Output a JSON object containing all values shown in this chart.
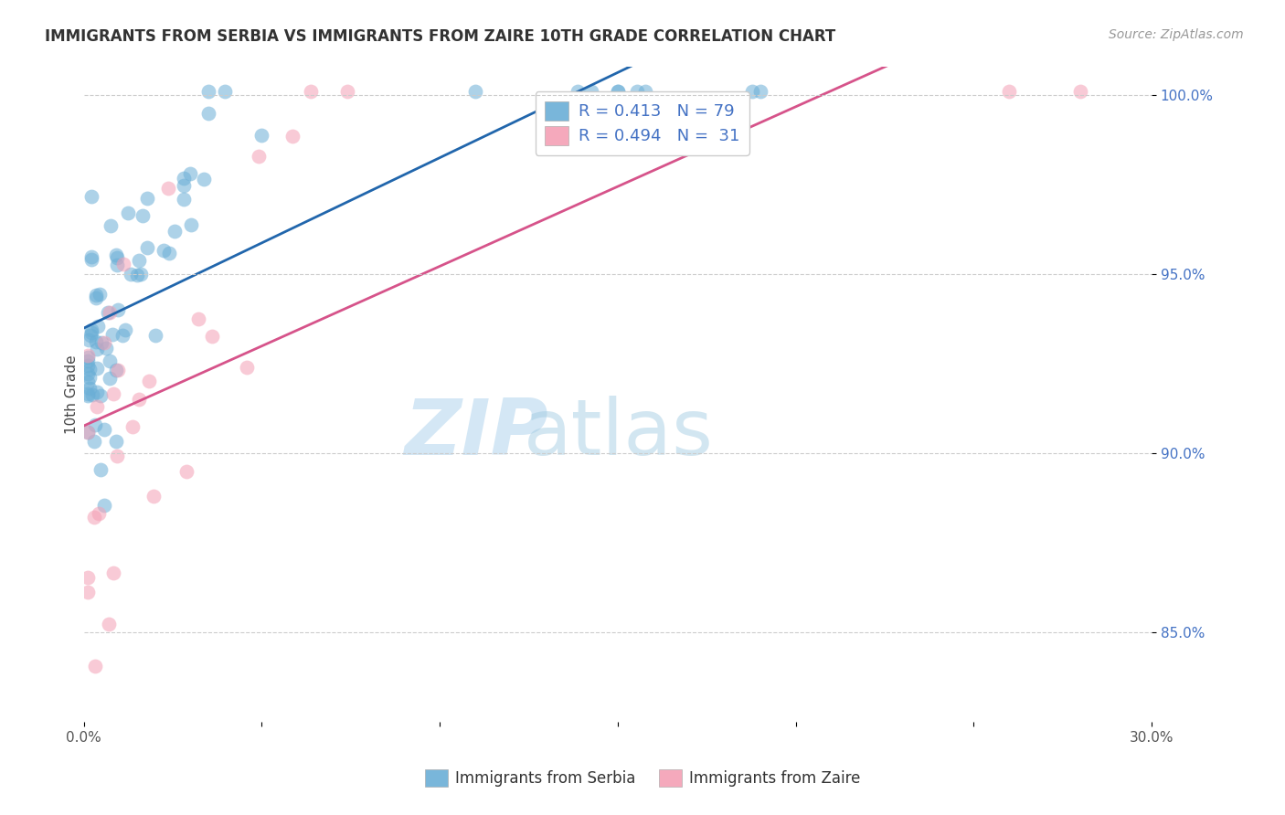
{
  "title": "IMMIGRANTS FROM SERBIA VS IMMIGRANTS FROM ZAIRE 10TH GRADE CORRELATION CHART",
  "source": "Source: ZipAtlas.com",
  "ylabel": "10th Grade",
  "xlim": [
    0.0,
    0.3
  ],
  "ylim": [
    0.825,
    1.008
  ],
  "yticks": [
    0.85,
    0.9,
    0.95,
    1.0
  ],
  "yticklabels": [
    "85.0%",
    "90.0%",
    "95.0%",
    "100.0%"
  ],
  "serbia_R": 0.413,
  "serbia_N": 79,
  "zaire_R": 0.494,
  "zaire_N": 31,
  "serbia_color": "#6aaed6",
  "zaire_color": "#f4a0b5",
  "serbia_line_color": "#2166ac",
  "zaire_line_color": "#d6538a",
  "watermark_zip": "ZIP",
  "watermark_atlas": "atlas",
  "background_color": "#ffffff",
  "grid_color": "#cccccc",
  "serbia_seed": 42,
  "zaire_seed": 7
}
